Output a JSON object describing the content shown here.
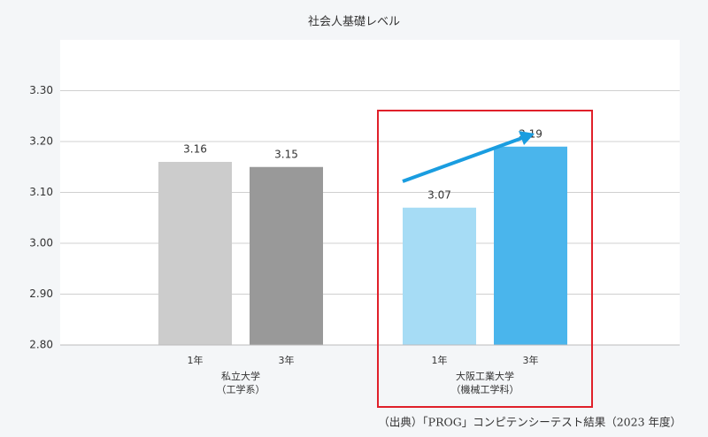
{
  "chart_data": {
    "type": "bar",
    "title": "社会人基礎レベル",
    "ylim": [
      2.8,
      3.4
    ],
    "yticks": [
      {
        "value": 2.8,
        "label": "2.80"
      },
      {
        "value": 2.9,
        "label": "2.90"
      },
      {
        "value": 3.0,
        "label": "3.00"
      },
      {
        "value": 3.1,
        "label": "3.10"
      },
      {
        "value": 3.2,
        "label": "3.20"
      },
      {
        "value": 3.3,
        "label": "3.30"
      }
    ],
    "grid": true,
    "groups": [
      {
        "lines": [
          "私立大学",
          "（工学系）"
        ],
        "categories": [
          "1年",
          "3年"
        ],
        "values": [
          3.16,
          3.15
        ],
        "colors": [
          "#cccccc",
          "#999999"
        ]
      },
      {
        "lines": [
          "大阪工業大学",
          "（機械工学科）"
        ],
        "categories": [
          "1年",
          "3年"
        ],
        "values": [
          3.07,
          3.19
        ],
        "colors": [
          "#a6dcf5",
          "#4ab5ec"
        ]
      }
    ],
    "source": "（出典）「PROG」コンピテンシーテスト結果（2023 年度）"
  }
}
